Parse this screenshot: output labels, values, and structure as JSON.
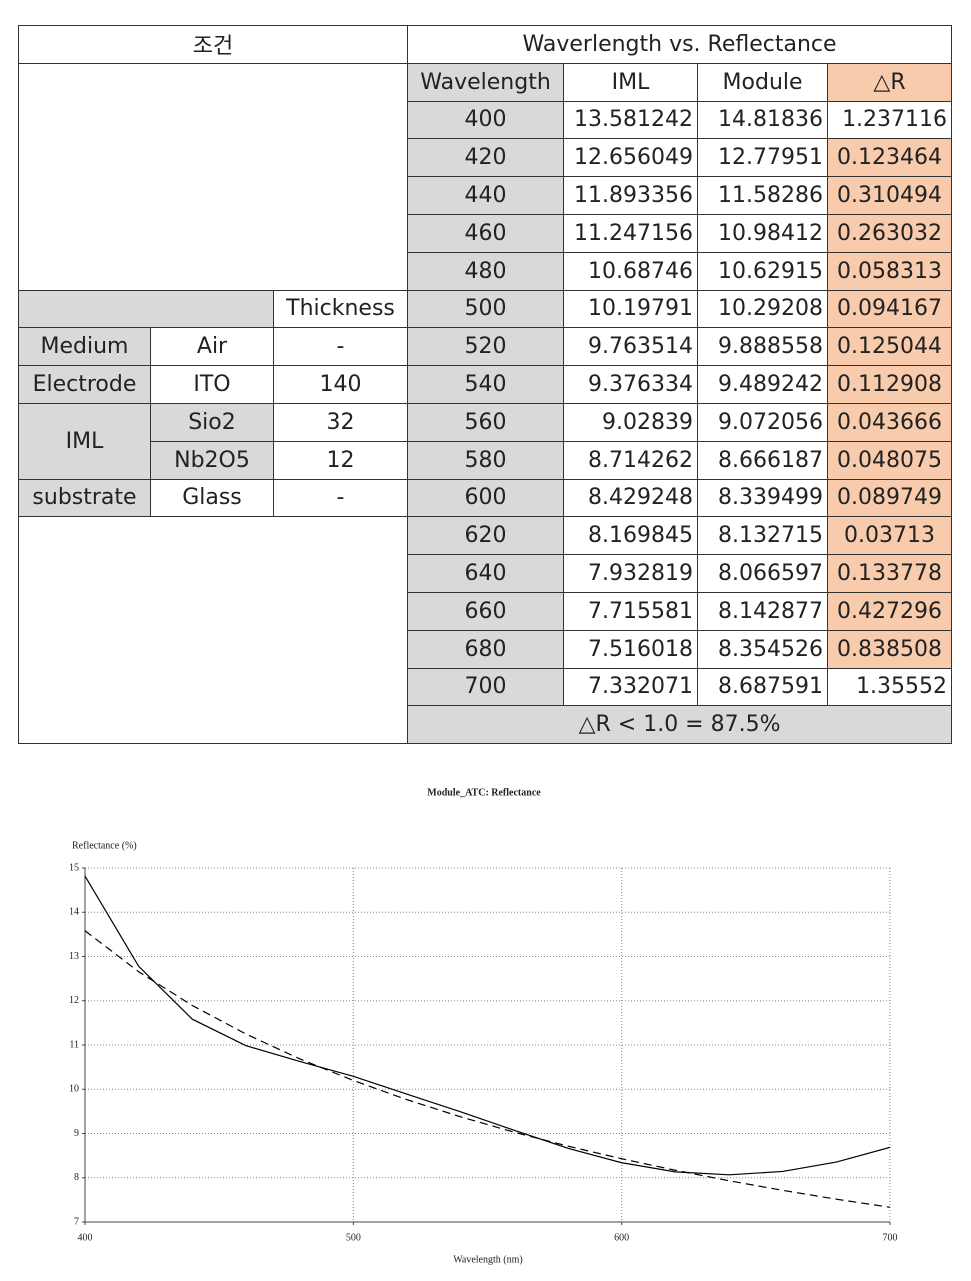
{
  "table": {
    "left_header": "조건",
    "right_header": "Waverlength vs. Reflectance",
    "columns": [
      "Wavelength",
      "IML",
      "Module",
      "△R"
    ],
    "rows": [
      [
        400,
        13.581242,
        14.81836,
        1.237116
      ],
      [
        420,
        12.656049,
        12.77951,
        0.123464
      ],
      [
        440,
        11.893356,
        11.58286,
        0.310494
      ],
      [
        460,
        11.247156,
        10.98412,
        0.263032
      ],
      [
        480,
        10.68746,
        10.62915,
        0.058313
      ],
      [
        500,
        10.19791,
        10.29208,
        0.094167
      ],
      [
        520,
        9.763514,
        9.888558,
        0.125044
      ],
      [
        540,
        9.376334,
        9.489242,
        0.112908
      ],
      [
        560,
        9.02839,
        9.072056,
        0.043666
      ],
      [
        580,
        8.714262,
        8.666187,
        0.048075
      ],
      [
        600,
        8.429248,
        8.339499,
        0.089749
      ],
      [
        620,
        8.169845,
        8.132715,
        0.03713
      ],
      [
        640,
        7.932819,
        8.066597,
        0.133778
      ],
      [
        660,
        7.715581,
        8.142877,
        0.427296
      ],
      [
        680,
        7.516018,
        8.354526,
        0.838508
      ],
      [
        700,
        7.332071,
        8.687591,
        1.35552
      ]
    ],
    "highlighted": [
      false,
      true,
      true,
      true,
      true,
      true,
      true,
      true,
      true,
      true,
      true,
      true,
      true,
      true,
      true,
      false
    ],
    "highlight_color": "#f8cbad",
    "summary": "△R < 1.0 = 87.5%",
    "conditions": {
      "thickness_header": "Thickness",
      "rows": [
        {
          "label": "Medium",
          "material": "Air",
          "thickness": "-"
        },
        {
          "label": "Electrode",
          "material": "ITO",
          "thickness": 140
        },
        {
          "label": "IML",
          "layers": [
            {
              "material": "Sio2",
              "thickness": 32
            },
            {
              "material": "Nb2O5",
              "thickness": 12
            }
          ]
        },
        {
          "label": "substrate",
          "material": "Glass",
          "thickness": "-"
        }
      ]
    }
  },
  "chart_data": {
    "type": "line",
    "title": "Module_ATC: Reflectance",
    "y_label": "Reflectance (%)",
    "x_label": "Wavelength (nm)",
    "x": [
      400,
      420,
      440,
      460,
      480,
      500,
      520,
      540,
      560,
      580,
      600,
      620,
      640,
      660,
      680,
      700
    ],
    "series": [
      {
        "color": "#000000",
        "dashed": false,
        "values": [
          14.81836,
          12.77951,
          11.58286,
          10.98412,
          10.62915,
          10.29208,
          9.888558,
          9.489242,
          9.072056,
          8.666187,
          8.339499,
          8.132715,
          8.066597,
          8.142877,
          8.354526,
          8.687591
        ]
      },
      {
        "color": "#000000",
        "dashed": true,
        "values": [
          13.581242,
          12.656049,
          11.893356,
          11.247156,
          10.68746,
          10.19791,
          9.763514,
          9.376334,
          9.02839,
          8.714262,
          8.429248,
          8.169845,
          7.932819,
          7.715581,
          7.516018,
          7.332071
        ]
      }
    ],
    "xlim": [
      400,
      700
    ],
    "xticks": [
      400,
      500,
      600,
      700
    ],
    "ylim": [
      7,
      15
    ],
    "yticks": [
      7,
      8,
      9,
      10,
      11,
      12,
      13,
      14,
      15
    ],
    "grid": true
  }
}
